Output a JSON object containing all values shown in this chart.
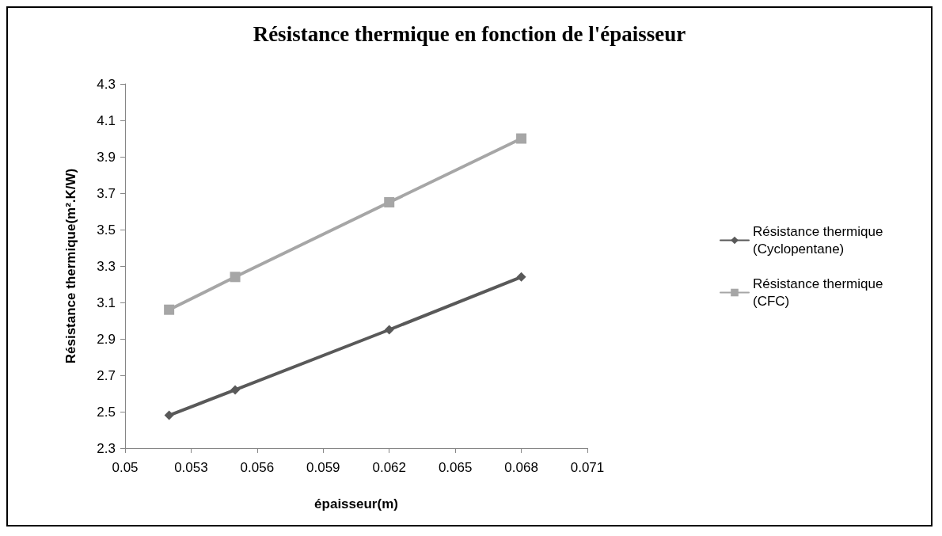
{
  "chart_data": {
    "type": "line",
    "title": "Résistance thermique en fonction de l'épaisseur",
    "xlabel": "épaisseur(m)",
    "ylabel": "Résistance thermique(m².K/W)",
    "x": [
      0.052,
      0.055,
      0.062,
      0.068
    ],
    "series": [
      {
        "name": "Résistance thermique (Cyclopentane)",
        "color": "#595959",
        "marker": "diamond",
        "values": [
          2.48,
          2.62,
          2.95,
          3.24
        ]
      },
      {
        "name": "Résistance thermique (CFC)",
        "color": "#a6a6a6",
        "marker": "square",
        "values": [
          3.06,
          3.24,
          3.65,
          4.0
        ]
      }
    ],
    "xlim": [
      0.05,
      0.071
    ],
    "xticks": [
      0.05,
      0.053,
      0.056,
      0.059,
      0.062,
      0.065,
      0.068,
      0.071
    ],
    "ylim": [
      2.3,
      4.3
    ],
    "yticks": [
      2.3,
      2.5,
      2.7,
      2.9,
      3.1,
      3.3,
      3.5,
      3.7,
      3.9,
      4.1,
      4.3
    ],
    "grid": false,
    "legend": "right",
    "line_style": "solid"
  }
}
